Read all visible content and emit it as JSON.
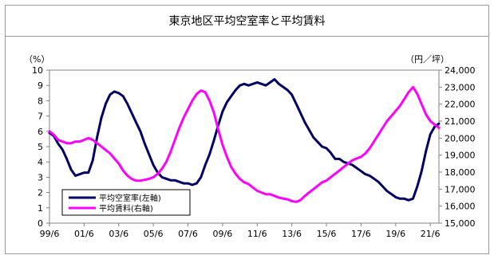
{
  "title": "東京地区平均空室率と平均賃料",
  "chart_data": {
    "type": "line",
    "left_unit": "（%）",
    "right_unit": "（円／坪）",
    "left_ticks": [
      "0",
      "1",
      "2",
      "3",
      "4",
      "5",
      "6",
      "7",
      "8",
      "9",
      "10"
    ],
    "right_ticks": [
      "15,000",
      "16,000",
      "17,000",
      "18,000",
      "19,000",
      "20,000",
      "21,000",
      "22,000",
      "23,000",
      "24,000"
    ],
    "x_ticks": [
      "99/6",
      "01/6",
      "03/6",
      "05/6",
      "07/6",
      "09/6",
      "11/6",
      "13/6",
      "15/6",
      "17/6",
      "19/6",
      "21/6"
    ],
    "ylim_left": [
      0,
      10
    ],
    "ylim_right": [
      15000,
      24000
    ],
    "legend_position": "bottom-left",
    "series": [
      {
        "name": "平均空室率(左軸)",
        "axis": "left",
        "color": "#000066",
        "points": [
          [
            "1999-06",
            5.9
          ],
          [
            "1999-09",
            5.7
          ],
          [
            "1999-12",
            5.2
          ],
          [
            "2000-03",
            4.8
          ],
          [
            "2000-06",
            4.2
          ],
          [
            "2000-09",
            3.5
          ],
          [
            "2000-12",
            3.1
          ],
          [
            "2001-03",
            3.2
          ],
          [
            "2001-06",
            3.3
          ],
          [
            "2001-09",
            3.3
          ],
          [
            "2001-12",
            4.1
          ],
          [
            "2002-03",
            5.6
          ],
          [
            "2002-06",
            6.9
          ],
          [
            "2002-09",
            7.8
          ],
          [
            "2002-12",
            8.4
          ],
          [
            "2003-03",
            8.6
          ],
          [
            "2003-06",
            8.5
          ],
          [
            "2003-09",
            8.3
          ],
          [
            "2003-12",
            7.8
          ],
          [
            "2004-03",
            7.2
          ],
          [
            "2004-06",
            6.6
          ],
          [
            "2004-09",
            6.0
          ],
          [
            "2004-12",
            5.2
          ],
          [
            "2005-03",
            4.5
          ],
          [
            "2005-06",
            3.8
          ],
          [
            "2005-09",
            3.3
          ],
          [
            "2005-12",
            3.0
          ],
          [
            "2006-03",
            2.9
          ],
          [
            "2006-06",
            2.8
          ],
          [
            "2006-09",
            2.8
          ],
          [
            "2006-12",
            2.7
          ],
          [
            "2007-03",
            2.6
          ],
          [
            "2007-06",
            2.6
          ],
          [
            "2007-09",
            2.5
          ],
          [
            "2007-12",
            2.6
          ],
          [
            "2008-03",
            3.0
          ],
          [
            "2008-06",
            3.8
          ],
          [
            "2008-09",
            4.5
          ],
          [
            "2008-12",
            5.4
          ],
          [
            "2009-03",
            6.4
          ],
          [
            "2009-06",
            7.3
          ],
          [
            "2009-09",
            7.9
          ],
          [
            "2009-12",
            8.3
          ],
          [
            "2010-03",
            8.7
          ],
          [
            "2010-06",
            9.0
          ],
          [
            "2010-09",
            9.1
          ],
          [
            "2010-12",
            9.0
          ],
          [
            "2011-03",
            9.1
          ],
          [
            "2011-06",
            9.2
          ],
          [
            "2011-09",
            9.1
          ],
          [
            "2011-12",
            9.0
          ],
          [
            "2012-03",
            9.2
          ],
          [
            "2012-06",
            9.4
          ],
          [
            "2012-09",
            9.1
          ],
          [
            "2012-12",
            8.9
          ],
          [
            "2013-03",
            8.7
          ],
          [
            "2013-06",
            8.4
          ],
          [
            "2013-09",
            7.8
          ],
          [
            "2013-12",
            7.2
          ],
          [
            "2014-03",
            6.6
          ],
          [
            "2014-06",
            6.1
          ],
          [
            "2014-09",
            5.6
          ],
          [
            "2014-12",
            5.3
          ],
          [
            "2015-03",
            5.0
          ],
          [
            "2015-06",
            4.9
          ],
          [
            "2015-09",
            4.6
          ],
          [
            "2015-12",
            4.2
          ],
          [
            "2016-03",
            4.2
          ],
          [
            "2016-06",
            4.0
          ],
          [
            "2016-09",
            3.9
          ],
          [
            "2016-12",
            3.8
          ],
          [
            "2017-03",
            3.6
          ],
          [
            "2017-06",
            3.4
          ],
          [
            "2017-09",
            3.2
          ],
          [
            "2017-12",
            3.1
          ],
          [
            "2018-03",
            2.9
          ],
          [
            "2018-06",
            2.7
          ],
          [
            "2018-09",
            2.4
          ],
          [
            "2018-12",
            2.1
          ],
          [
            "2019-03",
            1.9
          ],
          [
            "2019-06",
            1.7
          ],
          [
            "2019-09",
            1.6
          ],
          [
            "2019-12",
            1.6
          ],
          [
            "2020-03",
            1.5
          ],
          [
            "2020-06",
            1.6
          ],
          [
            "2020-09",
            2.4
          ],
          [
            "2020-12",
            3.4
          ],
          [
            "2021-03",
            4.7
          ],
          [
            "2021-06",
            5.8
          ],
          [
            "2021-09",
            6.3
          ],
          [
            "2021-12",
            6.5
          ]
        ]
      },
      {
        "name": "平均賃料(右軸)",
        "axis": "right",
        "color": "#ff00ff",
        "points": [
          [
            "1999-06",
            20400
          ],
          [
            "1999-09",
            20200
          ],
          [
            "1999-12",
            19900
          ],
          [
            "2000-03",
            19800
          ],
          [
            "2000-06",
            19700
          ],
          [
            "2000-09",
            19700
          ],
          [
            "2000-12",
            19800
          ],
          [
            "2001-03",
            19800
          ],
          [
            "2001-06",
            19900
          ],
          [
            "2001-09",
            20000
          ],
          [
            "2001-12",
            19900
          ],
          [
            "2002-03",
            19700
          ],
          [
            "2002-06",
            19500
          ],
          [
            "2002-09",
            19300
          ],
          [
            "2002-12",
            19100
          ],
          [
            "2003-03",
            18800
          ],
          [
            "2003-06",
            18500
          ],
          [
            "2003-09",
            18100
          ],
          [
            "2003-12",
            17800
          ],
          [
            "2004-03",
            17600
          ],
          [
            "2004-06",
            17500
          ],
          [
            "2004-09",
            17500
          ],
          [
            "2004-12",
            17550
          ],
          [
            "2005-03",
            17600
          ],
          [
            "2005-06",
            17700
          ],
          [
            "2005-09",
            17900
          ],
          [
            "2005-12",
            18200
          ],
          [
            "2006-03",
            18600
          ],
          [
            "2006-06",
            19200
          ],
          [
            "2006-09",
            19900
          ],
          [
            "2006-12",
            20600
          ],
          [
            "2007-03",
            21200
          ],
          [
            "2007-06",
            21700
          ],
          [
            "2007-09",
            22200
          ],
          [
            "2007-12",
            22600
          ],
          [
            "2008-03",
            22800
          ],
          [
            "2008-06",
            22700
          ],
          [
            "2008-09",
            22200
          ],
          [
            "2008-12",
            21500
          ],
          [
            "2009-03",
            20500
          ],
          [
            "2009-06",
            19600
          ],
          [
            "2009-09",
            18900
          ],
          [
            "2009-12",
            18300
          ],
          [
            "2010-03",
            17900
          ],
          [
            "2010-06",
            17600
          ],
          [
            "2010-09",
            17400
          ],
          [
            "2010-12",
            17300
          ],
          [
            "2011-03",
            17100
          ],
          [
            "2011-06",
            16900
          ],
          [
            "2011-09",
            16800
          ],
          [
            "2011-12",
            16700
          ],
          [
            "2012-03",
            16700
          ],
          [
            "2012-06",
            16600
          ],
          [
            "2012-09",
            16500
          ],
          [
            "2012-12",
            16450
          ],
          [
            "2013-03",
            16400
          ],
          [
            "2013-06",
            16300
          ],
          [
            "2013-09",
            16250
          ],
          [
            "2013-12",
            16350
          ],
          [
            "2014-03",
            16600
          ],
          [
            "2014-06",
            16800
          ],
          [
            "2014-09",
            17000
          ],
          [
            "2014-12",
            17200
          ],
          [
            "2015-03",
            17400
          ],
          [
            "2015-06",
            17500
          ],
          [
            "2015-09",
            17700
          ],
          [
            "2015-12",
            17900
          ],
          [
            "2016-03",
            18100
          ],
          [
            "2016-06",
            18300
          ],
          [
            "2016-09",
            18500
          ],
          [
            "2016-12",
            18700
          ],
          [
            "2017-03",
            18800
          ],
          [
            "2017-06",
            18900
          ],
          [
            "2017-09",
            19100
          ],
          [
            "2017-12",
            19400
          ],
          [
            "2018-03",
            19800
          ],
          [
            "2018-06",
            20200
          ],
          [
            "2018-09",
            20600
          ],
          [
            "2018-12",
            21000
          ],
          [
            "2019-03",
            21300
          ],
          [
            "2019-06",
            21600
          ],
          [
            "2019-09",
            21900
          ],
          [
            "2019-12",
            22300
          ],
          [
            "2020-03",
            22700
          ],
          [
            "2020-06",
            23000
          ],
          [
            "2020-09",
            22600
          ],
          [
            "2020-12",
            22000
          ],
          [
            "2021-03",
            21400
          ],
          [
            "2021-06",
            21000
          ],
          [
            "2021-09",
            20800
          ],
          [
            "2021-12",
            20600
          ]
        ]
      }
    ]
  }
}
